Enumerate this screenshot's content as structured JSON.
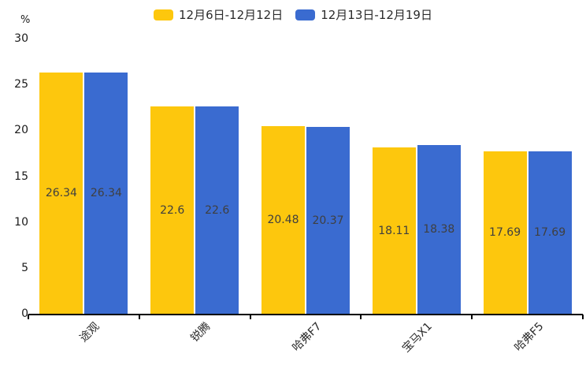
{
  "chart_data": {
    "type": "bar",
    "title": "",
    "categories": [
      "途观",
      "锐腾",
      "哈弗F7",
      "宝马X1",
      "哈弗F5"
    ],
    "series": [
      {
        "name": "12月6日-12月12日",
        "color": "#FDC70D",
        "values": [
          26.34,
          22.6,
          20.48,
          18.11,
          17.69
        ]
      },
      {
        "name": "12月13日-12月19日",
        "color": "#3A6BD0",
        "values": [
          26.34,
          22.6,
          20.37,
          18.38,
          17.69
        ]
      }
    ],
    "xlabel": "",
    "ylabel": "%",
    "ylim": [
      0,
      30
    ],
    "yticks": [
      0,
      5,
      10,
      15,
      20,
      25,
      30
    ],
    "legend_position": "top",
    "grid": false,
    "value_labels": "inside-middle",
    "value_label_color": "#3f3f3f",
    "axis_color": "#000000",
    "category_label_rotation": -45
  }
}
